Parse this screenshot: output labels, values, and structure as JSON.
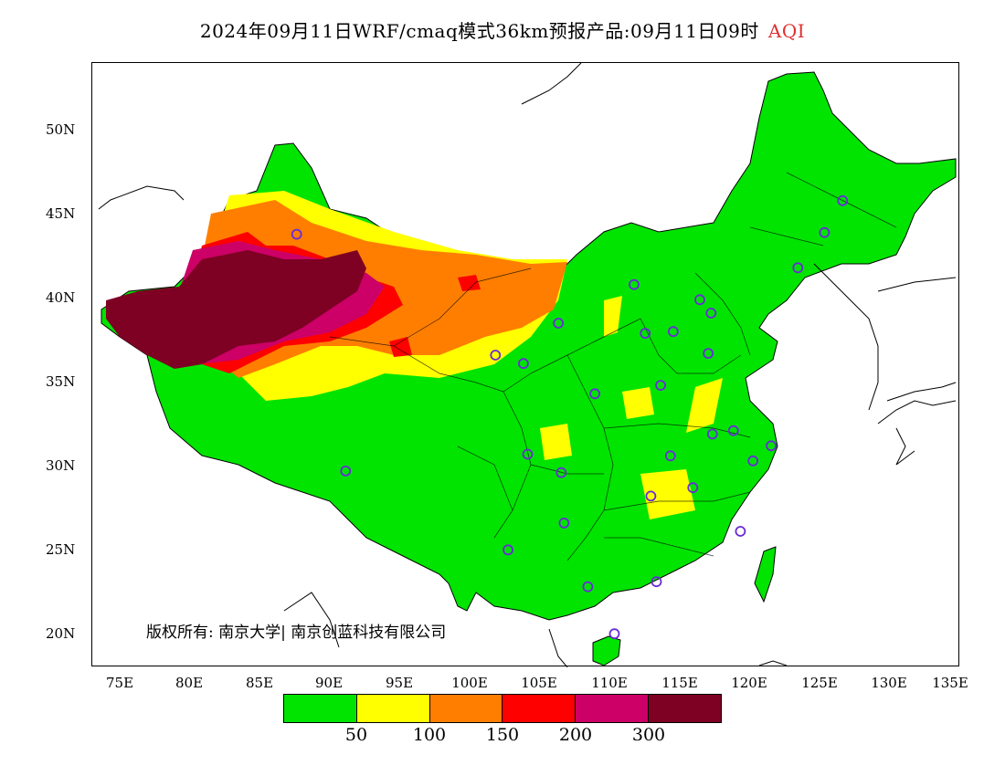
{
  "title": {
    "main": "2024年09月11日WRF/cmaq模式36km预报产品:09月11日09时",
    "variable": "AQI",
    "variable_color": "#e03030"
  },
  "axes": {
    "lat_labels": [
      "50N",
      "45N",
      "40N",
      "35N",
      "30N",
      "25N",
      "20N"
    ],
    "lon_labels": [
      "75E",
      "80E",
      "85E",
      "90E",
      "95E",
      "100E",
      "105E",
      "110E",
      "115E",
      "120E",
      "125E",
      "130E",
      "135E"
    ],
    "lon_range": [
      73,
      135
    ],
    "lat_range": [
      18,
      54
    ]
  },
  "copyright": "版权所有: 南京大学| 南京创蓝科技有限公司",
  "legend": {
    "colors": [
      "#00e400",
      "#ffff00",
      "#ff7e00",
      "#ff0000",
      "#cc0066",
      "#7e0023"
    ],
    "labels": [
      "50",
      "100",
      "150",
      "200",
      "300"
    ]
  },
  "stations": [
    [
      116.4,
      39.9
    ],
    [
      117.2,
      39.1
    ],
    [
      114.5,
      38.0
    ],
    [
      112.5,
      37.9
    ],
    [
      111.7,
      40.8
    ],
    [
      106.3,
      38.5
    ],
    [
      103.8,
      36.1
    ],
    [
      101.8,
      36.6
    ],
    [
      87.6,
      43.8
    ],
    [
      91.1,
      29.7
    ],
    [
      104.1,
      30.7
    ],
    [
      106.5,
      29.6
    ],
    [
      106.7,
      26.6
    ],
    [
      102.7,
      25.0
    ],
    [
      108.4,
      22.8
    ],
    [
      110.3,
      20.0
    ],
    [
      113.3,
      23.1
    ],
    [
      119.3,
      26.1
    ],
    [
      115.9,
      28.7
    ],
    [
      112.9,
      28.2
    ],
    [
      114.3,
      30.6
    ],
    [
      117.3,
      31.9
    ],
    [
      118.8,
      32.1
    ],
    [
      120.2,
      30.3
    ],
    [
      121.5,
      31.2
    ],
    [
      113.6,
      34.8
    ],
    [
      108.9,
      34.3
    ],
    [
      117.0,
      36.7
    ],
    [
      123.4,
      41.8
    ],
    [
      125.3,
      43.9
    ],
    [
      126.6,
      45.8
    ]
  ]
}
